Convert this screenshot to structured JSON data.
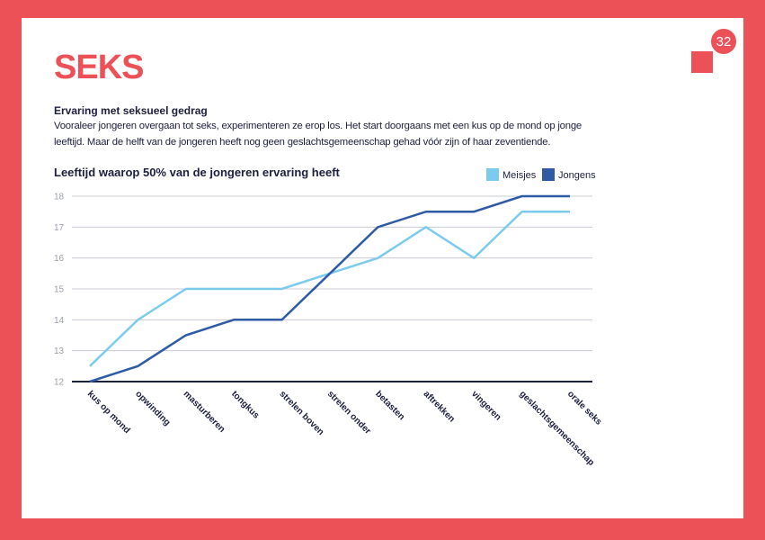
{
  "page_number": "32",
  "title": "SEKS",
  "intro": {
    "heading": "Ervaring met seksueel gedrag",
    "text": "Vooraleer jongeren overgaan tot seks, experimenteren ze erop los. Het start doorgaans met een kus op de mond op jonge leeftijd. Maar de helft van de jongeren heeft nog geen geslachtsgemeenschap gehad vóór zijn of haar zeventiende."
  },
  "colors": {
    "background": "#ec5158",
    "meisjes": "#7ccbee",
    "jongens": "#2f5aa4",
    "text": "#1c1f3f",
    "grid": "#c9ccd3"
  },
  "chart_data": {
    "type": "line",
    "title": "Leeftijd waarop 50% van de jongeren ervaring heeft",
    "categories": [
      "kus op mond",
      "opwinding",
      "masturberen",
      "tongkus",
      "strelen boven",
      "strelen onder",
      "betasten",
      "aftrekken",
      "vingeren",
      "geslachtsgemeenschap",
      "orale seks"
    ],
    "series": [
      {
        "name": "Meisjes",
        "color": "#7ccbee",
        "values": [
          12.5,
          14.0,
          15.0,
          15.0,
          15.0,
          15.5,
          16.0,
          17.0,
          16.0,
          17.5,
          17.5
        ]
      },
      {
        "name": "Jongens",
        "color": "#2f5aa4",
        "values": [
          12.0,
          12.5,
          13.5,
          14.0,
          14.0,
          15.5,
          17.0,
          17.5,
          17.5,
          18.0,
          18.0
        ]
      }
    ],
    "yticks": [
      12,
      13,
      14,
      15,
      16,
      17,
      18
    ],
    "ylim": [
      12,
      18
    ],
    "grid": true,
    "legend_position": "top-right"
  }
}
